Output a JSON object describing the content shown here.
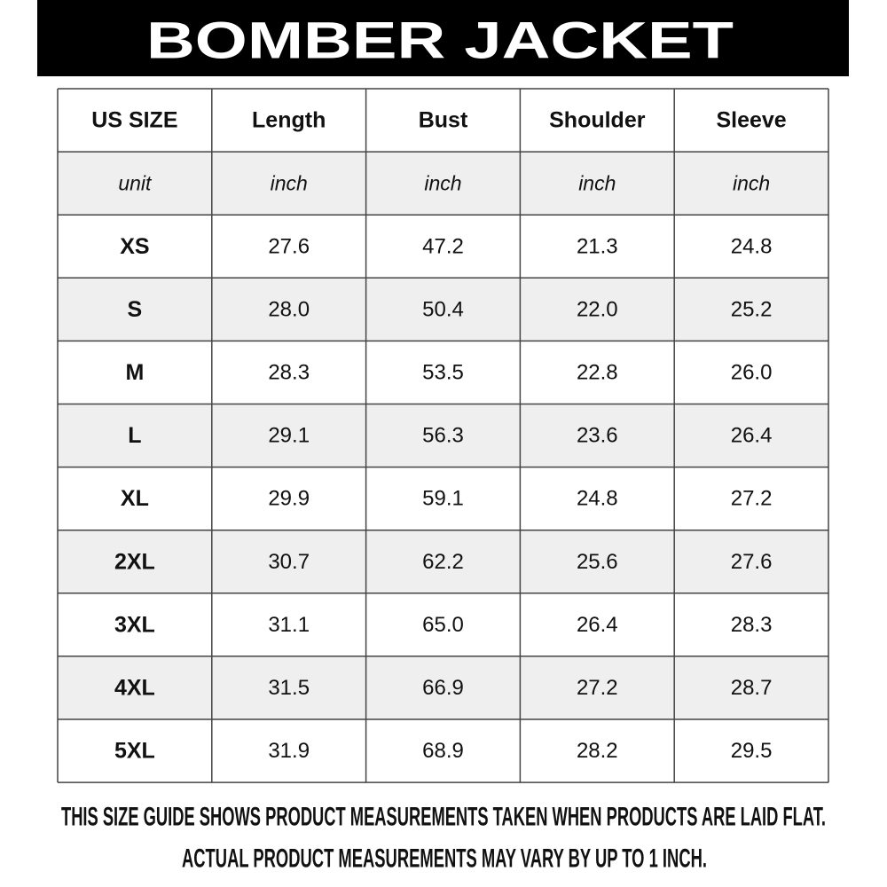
{
  "header": {
    "title": "BOMBER JACKET"
  },
  "table": {
    "columns": [
      "US SIZE",
      "Length",
      "Bust",
      "Shoulder",
      "Sleeve"
    ],
    "units": [
      "unit",
      "inch",
      "inch",
      "inch",
      "inch"
    ],
    "rows": [
      [
        "XS",
        "27.6",
        "47.2",
        "21.3",
        "24.8"
      ],
      [
        "S",
        "28.0",
        "50.4",
        "22.0",
        "25.2"
      ],
      [
        "M",
        "28.3",
        "53.5",
        "22.8",
        "26.0"
      ],
      [
        "L",
        "29.1",
        "56.3",
        "23.6",
        "26.4"
      ],
      [
        "XL",
        "29.9",
        "59.1",
        "24.8",
        "27.2"
      ],
      [
        "2XL",
        "30.7",
        "62.2",
        "25.6",
        "27.6"
      ],
      [
        "3XL",
        "31.1",
        "65.0",
        "26.4",
        "28.3"
      ],
      [
        "4XL",
        "31.5",
        "66.9",
        "27.2",
        "28.7"
      ],
      [
        "5XL",
        "31.9",
        "68.9",
        "28.2",
        "29.5"
      ]
    ]
  },
  "footer": {
    "lines": [
      "THIS SIZE GUIDE SHOWS PRODUCT MEASUREMENTS TAKEN WHEN PRODUCTS ARE LAID FLAT.",
      "ACTUAL PRODUCT MEASUREMENTS MAY VARY BY UP TO 1 INCH."
    ]
  }
}
